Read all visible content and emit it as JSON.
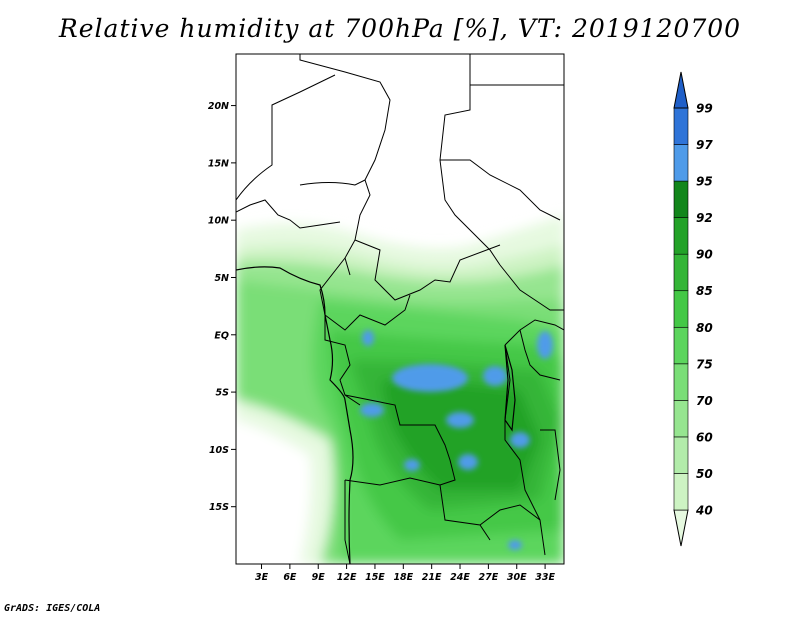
{
  "title": "Relative humidity at 700hPa [%], VT: 2019120700",
  "credit": "GrADS: IGES/COLA",
  "map": {
    "lat_labels": [
      "20N",
      "15N",
      "10N",
      "5N",
      "EQ",
      "5S",
      "10S",
      "15S"
    ],
    "lat_values": [
      20,
      15,
      10,
      5,
      0,
      -5,
      -10,
      -15
    ],
    "lon_labels": [
      "3E",
      "6E",
      "9E",
      "12E",
      "15E",
      "18E",
      "21E",
      "24E",
      "27E",
      "30E",
      "33E"
    ],
    "lon_values": [
      3,
      6,
      9,
      12,
      15,
      18,
      21,
      24,
      27,
      30,
      33
    ],
    "lat_range": [
      -20,
      24.5
    ],
    "lon_range": [
      0.3,
      35
    ]
  },
  "colorbar": {
    "levels": [
      "40",
      "50",
      "60",
      "70",
      "75",
      "80",
      "85",
      "90",
      "92",
      "95",
      "97",
      "99"
    ],
    "colors": [
      "#e6f9e0",
      "#cdf3c3",
      "#b2ecaa",
      "#96e590",
      "#7ade77",
      "#5cd55d",
      "#44c846",
      "#34b537",
      "#23a228",
      "#12861b",
      "#4f9be9",
      "#2f74d8",
      "#1f5fc8"
    ]
  }
}
